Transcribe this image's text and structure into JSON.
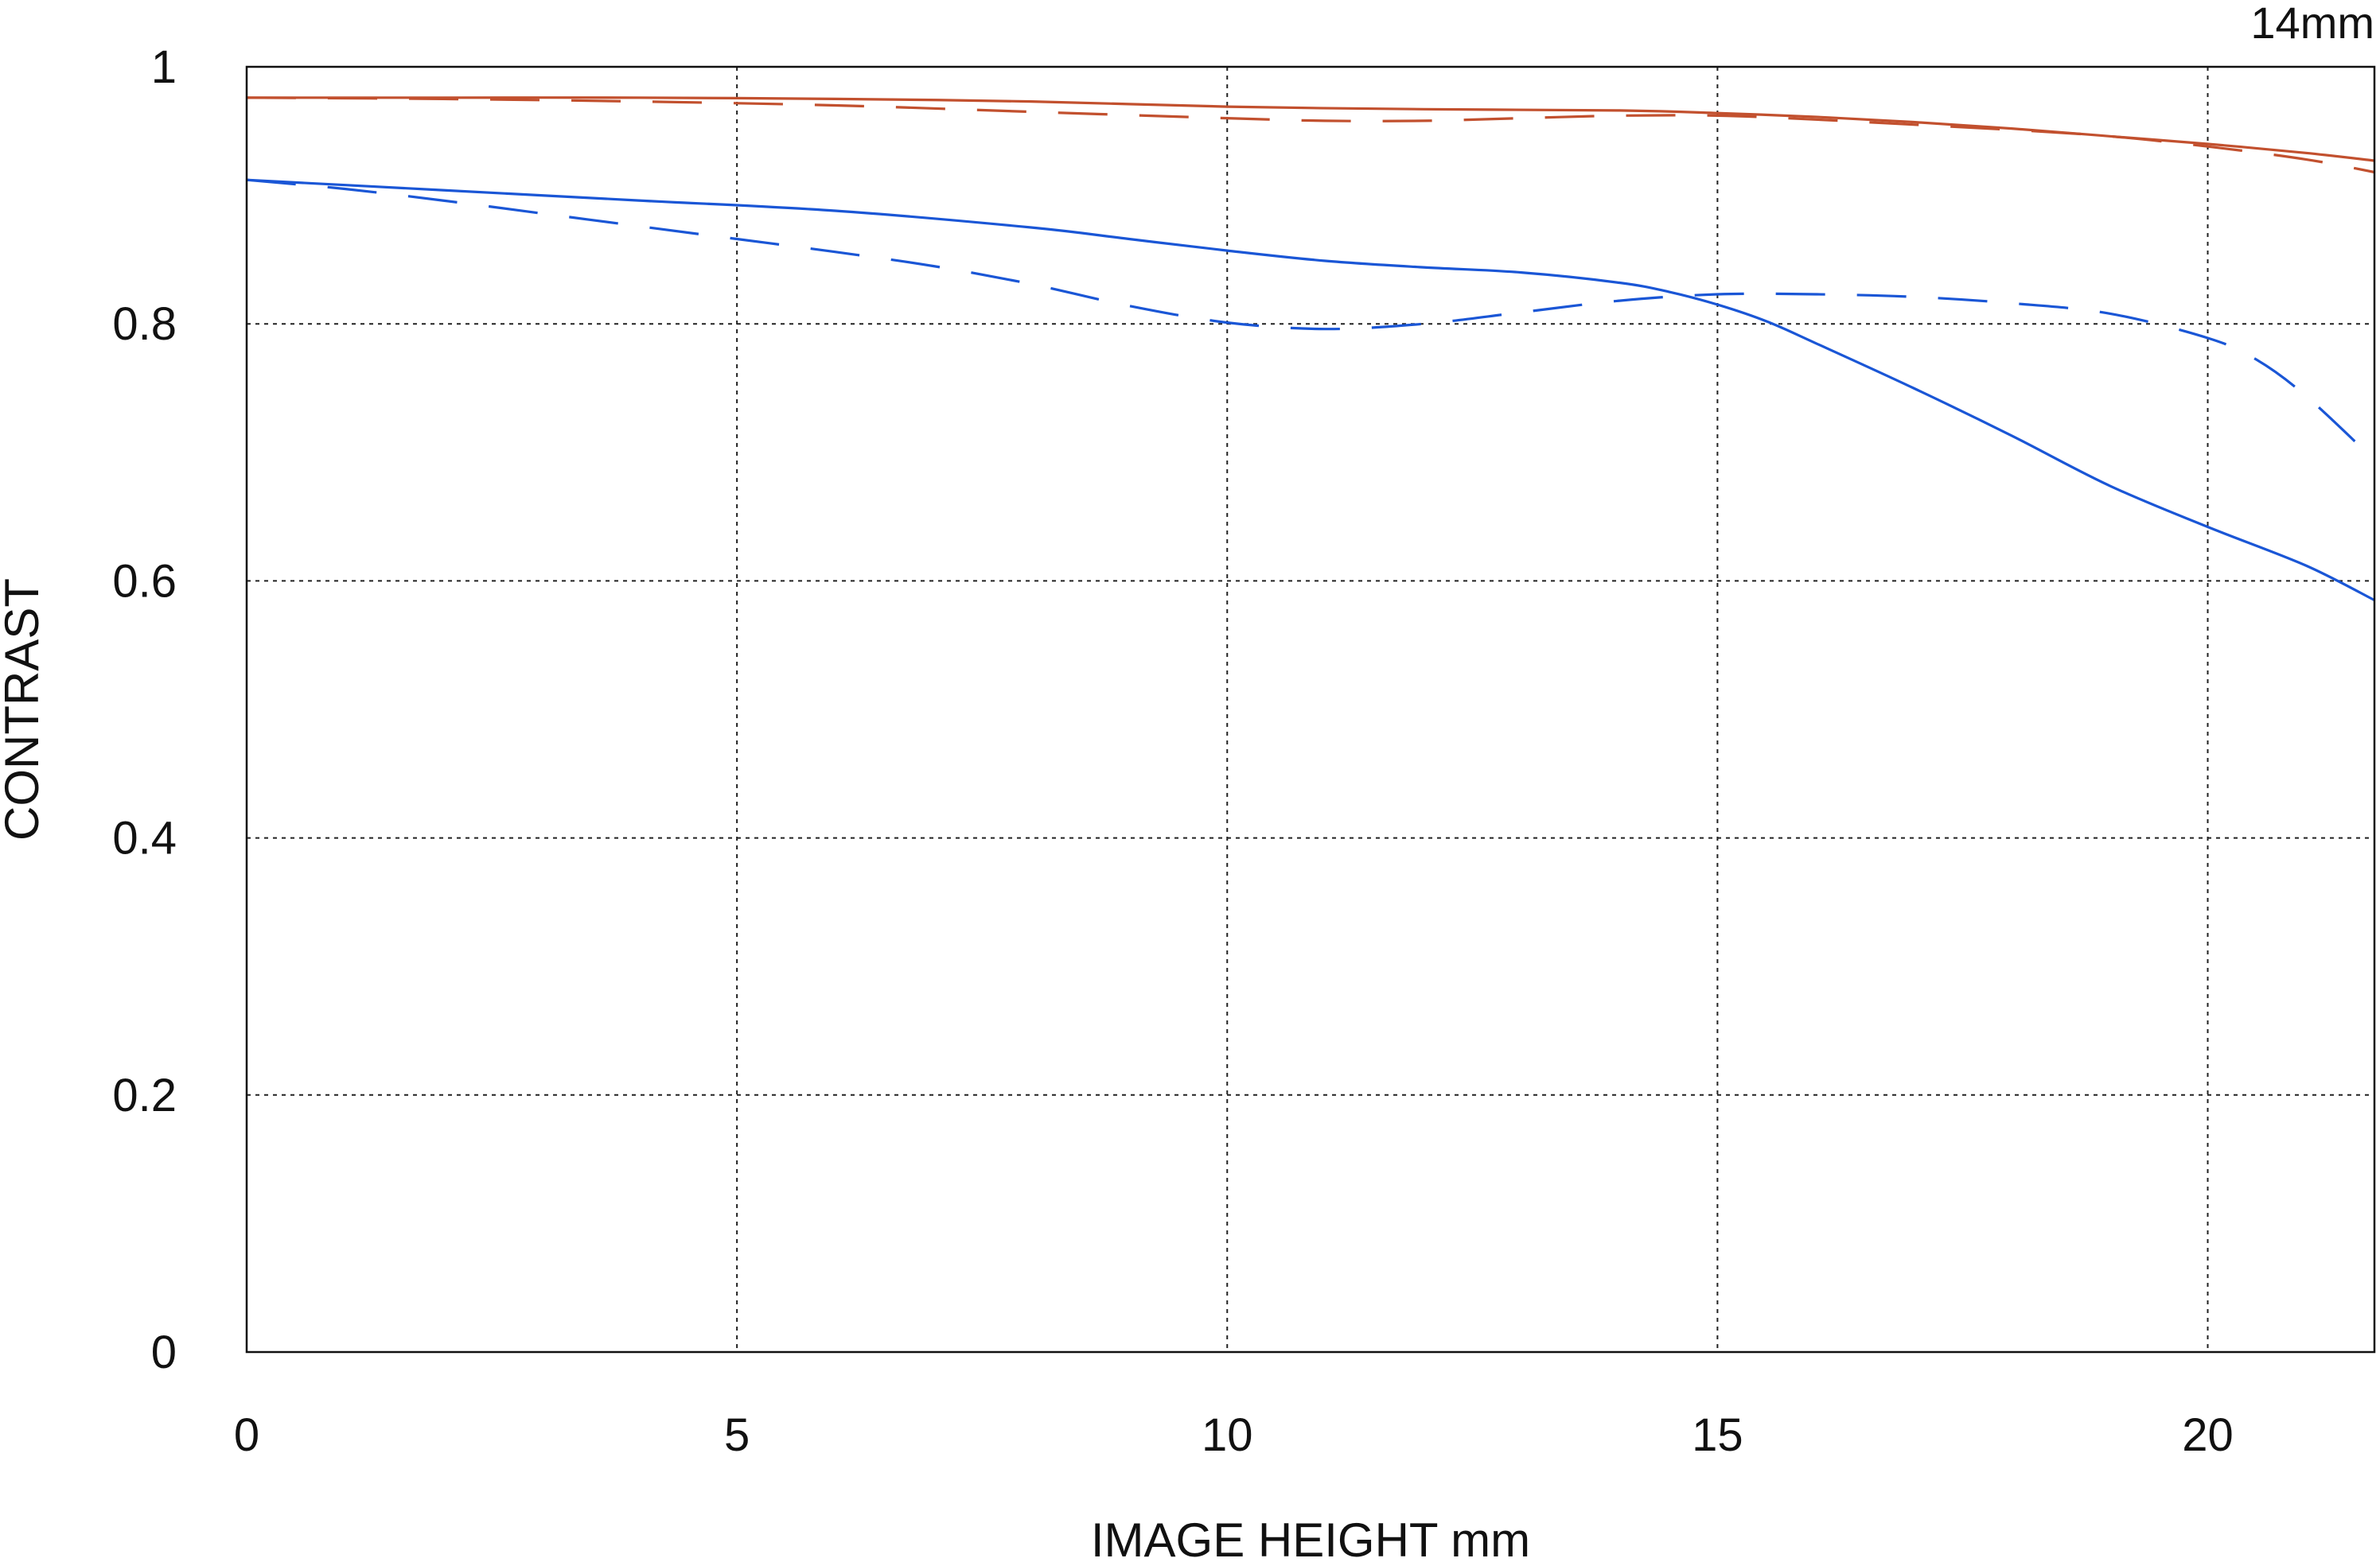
{
  "chart_data": {
    "type": "line",
    "title": "14mm",
    "xlabel": "IMAGE HEIGHT  mm",
    "ylabel": "CONTRAST",
    "xlim": [
      0,
      21.7
    ],
    "ylim": [
      0,
      1
    ],
    "x_ticks": [
      0,
      5,
      10,
      15,
      20
    ],
    "y_ticks": [
      0,
      0.2,
      0.4,
      0.6,
      0.8,
      1
    ],
    "x_tick_labels": [
      "0",
      "5",
      "10",
      "15",
      "20"
    ],
    "y_tick_labels": [
      "0",
      "0.2",
      "0.4",
      "0.6",
      "0.8",
      "1"
    ],
    "grid": true,
    "legend": "none",
    "series": [
      {
        "color": "#c2502e",
        "style": "solid",
        "x": [
          0,
          2,
          4,
          6,
          8,
          10,
          12,
          14,
          15,
          16,
          17,
          18,
          19,
          20,
          21,
          21.7
        ],
        "y": [
          0.976,
          0.976,
          0.976,
          0.975,
          0.973,
          0.969,
          0.967,
          0.966,
          0.964,
          0.961,
          0.957,
          0.952,
          0.946,
          0.94,
          0.933,
          0.927
        ]
      },
      {
        "color": "#c2502e",
        "style": "dashed",
        "x": [
          0,
          2,
          4,
          6,
          8,
          10,
          11,
          12,
          13,
          14,
          15,
          16,
          17,
          18,
          19,
          20,
          21,
          21.7
        ],
        "y": [
          0.976,
          0.975,
          0.973,
          0.97,
          0.965,
          0.96,
          0.958,
          0.958,
          0.96,
          0.962,
          0.962,
          0.959,
          0.955,
          0.951,
          0.946,
          0.938,
          0.928,
          0.918
        ]
      },
      {
        "color": "#1a56d6",
        "style": "solid",
        "x": [
          0,
          2,
          4,
          6,
          8,
          9,
          10,
          11,
          12,
          13,
          14,
          14.5,
          15,
          15.5,
          16,
          17,
          18,
          19,
          20,
          21,
          21.7
        ],
        "y": [
          0.912,
          0.904,
          0.896,
          0.888,
          0.875,
          0.866,
          0.857,
          0.849,
          0.844,
          0.84,
          0.832,
          0.825,
          0.815,
          0.802,
          0.785,
          0.75,
          0.713,
          0.674,
          0.642,
          0.612,
          0.585
        ]
      },
      {
        "color": "#1a56d6",
        "style": "dashed",
        "x": [
          0,
          1,
          2,
          3,
          4,
          5,
          6,
          7,
          8,
          9,
          10,
          11,
          12,
          13,
          14,
          15,
          16,
          17,
          18,
          19,
          20,
          20.5,
          21,
          21.7
        ],
        "y": [
          0.912,
          0.905,
          0.896,
          0.886,
          0.876,
          0.866,
          0.856,
          0.845,
          0.831,
          0.814,
          0.801,
          0.796,
          0.8,
          0.809,
          0.818,
          0.823,
          0.823,
          0.821,
          0.816,
          0.808,
          0.789,
          0.772,
          0.744,
          0.694
        ]
      }
    ]
  }
}
